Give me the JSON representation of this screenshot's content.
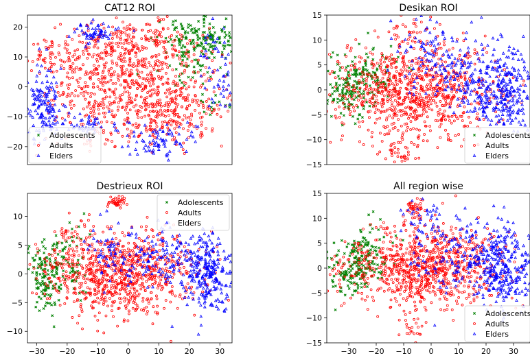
{
  "chart_data": [
    {
      "type": "scatter",
      "title": "CAT12 ROI",
      "xlabel": "",
      "ylabel": "",
      "xlim": [
        -33,
        33
      ],
      "ylim": [
        -26,
        24
      ],
      "xticks": [],
      "yticks": [
        -20,
        -10,
        0,
        10,
        20
      ],
      "legend": "lower-left",
      "series": [
        {
          "name": "Adolescents",
          "color": "#008000",
          "marker": "x",
          "clusters": [
            [
              22,
              15,
              6,
              4,
              180
            ],
            [
              18,
              5,
              4,
              3,
              25
            ],
            [
              26,
              -7,
              3,
              2,
              15
            ]
          ]
        },
        {
          "name": "Adults",
          "color": "#ff0000",
          "marker": "o",
          "clusters": [
            [
              0,
              0,
              14,
              9,
              700
            ],
            [
              -26,
              11,
              3,
              3,
              40
            ],
            [
              -8,
              14,
              8,
              4,
              100
            ],
            [
              14,
              -10,
              8,
              5,
              140
            ],
            [
              8,
              14,
              8,
              4,
              100
            ]
          ]
        },
        {
          "name": "Elders",
          "color": "#0000ff",
          "marker": "^",
          "clusters": [
            [
              -28,
              -5,
              3,
              6,
              140
            ],
            [
              -12,
              18,
              4,
              2,
              60
            ],
            [
              10,
              -18,
              7,
              3,
              80
            ],
            [
              -15,
              -13,
              6,
              2,
              60
            ],
            [
              28,
              5,
              3,
              8,
              50
            ]
          ]
        }
      ]
    },
    {
      "type": "scatter",
      "title": "Desikan ROI",
      "xlabel": "",
      "ylabel": "",
      "xlim": [
        -36,
        36
      ],
      "ylim": [
        -15,
        15
      ],
      "xticks": [],
      "yticks": [
        -15,
        -10,
        -5,
        0,
        5,
        10,
        15
      ],
      "legend": "lower-right",
      "series": [
        {
          "name": "Adolescents",
          "color": "#008000",
          "marker": "x",
          "clusters": [
            [
              -28,
              0,
              4,
              3,
              140
            ],
            [
              -20,
              3,
              5,
              3,
              80
            ]
          ]
        },
        {
          "name": "Adults",
          "color": "#ff0000",
          "marker": "o",
          "clusters": [
            [
              -4,
              0,
              14,
              5,
              900
            ],
            [
              -10,
              -13,
              3,
              1,
              30
            ],
            [
              -5,
              11,
              3,
              2,
              25
            ]
          ]
        },
        {
          "name": "Elders",
          "color": "#0000ff",
          "marker": "^",
          "clusters": [
            [
              26,
              0,
              6,
              4,
              300
            ],
            [
              10,
              4,
              8,
              4,
              150
            ],
            [
              -2,
              9,
              4,
              3,
              40
            ]
          ]
        }
      ]
    },
    {
      "type": "scatter",
      "title": "Destrieux ROI",
      "xlabel": "",
      "ylabel": "",
      "xlim": [
        -33,
        34
      ],
      "ylim": [
        -12,
        14
      ],
      "xticks": [
        -30,
        -20,
        -10,
        0,
        10,
        20,
        30
      ],
      "yticks": [
        -10,
        -5,
        0,
        5,
        10
      ],
      "legend": "upper-right",
      "series": [
        {
          "name": "Adolescents",
          "color": "#008000",
          "marker": "x",
          "clusters": [
            [
              -27,
              0,
              3,
              3,
              140
            ],
            [
              -20,
              2,
              4,
              3,
              60
            ]
          ]
        },
        {
          "name": "Adults",
          "color": "#ff0000",
          "marker": "o",
          "clusters": [
            [
              -3,
              0,
              13,
              3.5,
              900
            ],
            [
              -4,
              12.3,
              1.5,
              0.6,
              40
            ],
            [
              -18,
              7,
              3,
              1.5,
              30
            ]
          ]
        },
        {
          "name": "Elders",
          "color": "#0000ff",
          "marker": "^",
          "clusters": [
            [
              26,
              0,
              4,
              3,
              260
            ],
            [
              12,
              3,
              8,
              3,
              150
            ],
            [
              -5,
              4,
              5,
              3,
              50
            ]
          ]
        }
      ]
    },
    {
      "type": "scatter",
      "title": "All region wise",
      "xlabel": "",
      "ylabel": "",
      "xlim": [
        -38,
        36
      ],
      "ylim": [
        -15,
        15
      ],
      "xticks": [
        -30,
        -20,
        -10,
        0,
        10,
        20,
        30
      ],
      "yticks": [
        -15,
        -10,
        -5,
        0,
        5,
        10,
        15
      ],
      "legend": "lower-right",
      "series": [
        {
          "name": "Adolescents",
          "color": "#008000",
          "marker": "x",
          "clusters": [
            [
              -29,
              0,
              4,
              3,
              140
            ],
            [
              -22,
              3,
              4,
              3,
              80
            ]
          ]
        },
        {
          "name": "Adults",
          "color": "#ff0000",
          "marker": "o",
          "clusters": [
            [
              -3,
              0,
              14,
              4,
              900
            ],
            [
              -6,
              12,
              2,
              1.3,
              45
            ],
            [
              -8,
              -12,
              2,
              1,
              20
            ]
          ]
        },
        {
          "name": "Elders",
          "color": "#0000ff",
          "marker": "^",
          "clusters": [
            [
              26,
              0,
              5,
              4,
              300
            ],
            [
              10,
              3,
              9,
              4,
              150
            ],
            [
              -3,
              10,
              3,
              2,
              30
            ]
          ]
        }
      ]
    }
  ]
}
